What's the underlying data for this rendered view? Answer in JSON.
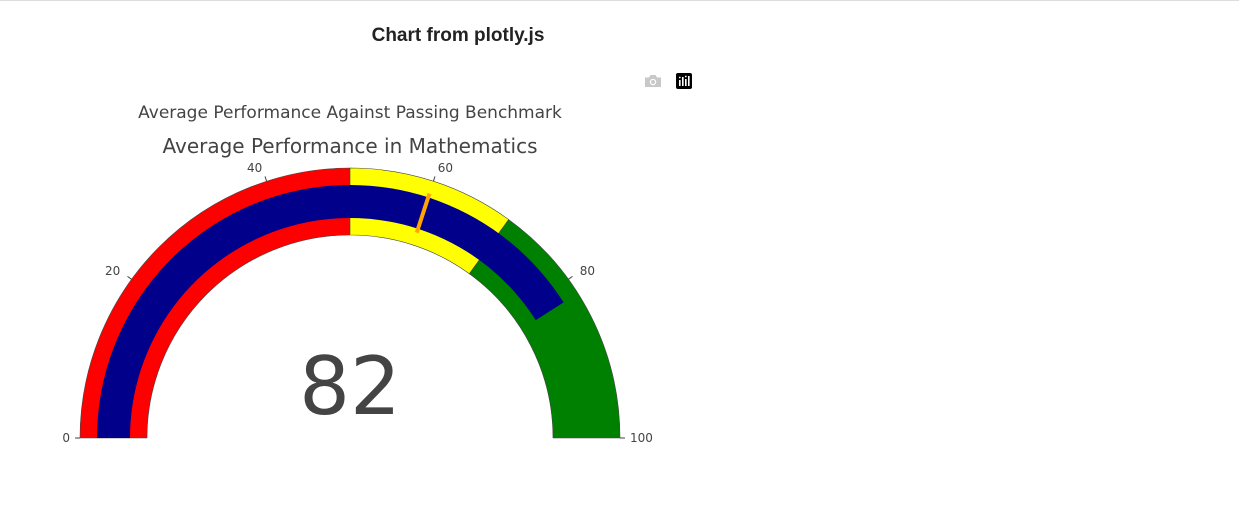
{
  "page": {
    "title": "Chart from plotly.js"
  },
  "modebar": {
    "buttons": [
      {
        "name": "download-image",
        "icon": "camera-icon",
        "color": "#c8c8c8"
      },
      {
        "name": "plotly-logo",
        "icon": "plotly-logo-icon",
        "color": "#000000"
      }
    ]
  },
  "chart_data": {
    "type": "gauge",
    "title": "Average Performance Against Passing Benchmark",
    "subtitle": "Average Performance in Mathematics",
    "value": 82,
    "value_label": "82",
    "range": [
      0,
      100
    ],
    "tick_labels": [
      "0",
      "20",
      "40",
      "60",
      "80",
      "100"
    ],
    "tick_values": [
      0,
      20,
      40,
      60,
      80,
      100
    ],
    "steps": [
      {
        "range": [
          0,
          50
        ],
        "color": "#ff0000"
      },
      {
        "range": [
          50,
          70
        ],
        "color": "#ffff00"
      },
      {
        "range": [
          70,
          100
        ],
        "color": "#008000"
      }
    ],
    "bar": {
      "value": 82,
      "color": "#00008b"
    },
    "threshold": {
      "value": 60,
      "color": "#ffa500"
    }
  }
}
